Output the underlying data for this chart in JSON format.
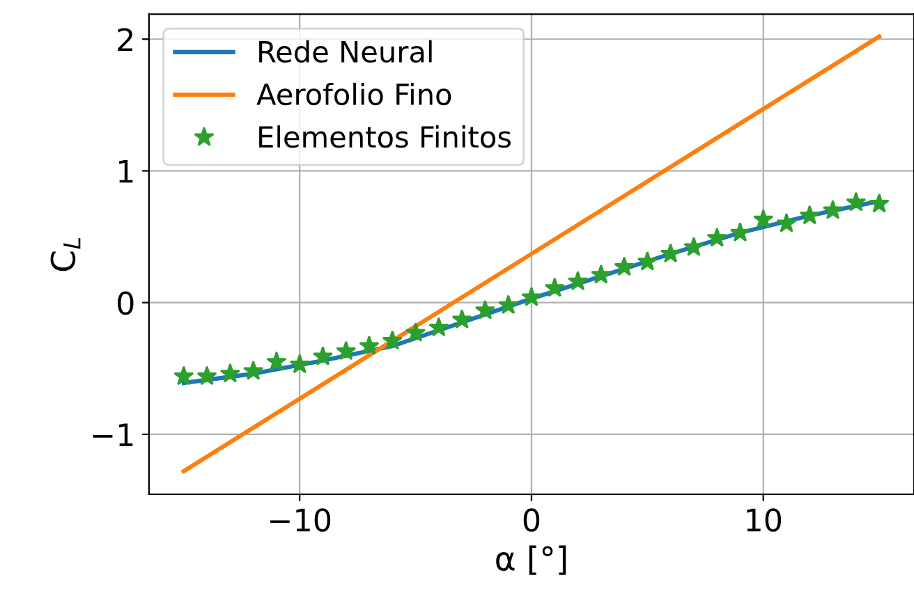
{
  "chart_data": {
    "type": "line",
    "xlabel": "α [°]",
    "ylabel": "C$_{L}$",
    "xlim": [
      -16.5,
      16.5
    ],
    "ylim": [
      -1.455,
      2.19
    ],
    "xticks": [
      {
        "value": -10,
        "label": "−10"
      },
      0,
      10
    ],
    "yticks": [
      {
        "value": -1,
        "label": "−1"
      },
      0,
      1,
      2
    ],
    "grid": true,
    "legend": "top left",
    "series": [
      {
        "name": "Rede Neural",
        "color": "#1f77b4",
        "x": [
          -15,
          -12,
          -9,
          -6,
          -3,
          0,
          3,
          6,
          9,
          12,
          15
        ],
        "values": [
          -0.61,
          -0.54,
          -0.44,
          -0.33,
          -0.15,
          0.03,
          0.2,
          0.37,
          0.53,
          0.66,
          0.77
        ]
      },
      {
        "name": "Aerofolio Fino",
        "color": "#ff7f0e",
        "x": [
          -15,
          15
        ],
        "values": [
          -1.28,
          2.02
        ]
      },
      {
        "name": "Elementos Finitos",
        "color": "#2ca02c",
        "type": "scatter",
        "marker": "star",
        "x": [
          -15,
          -14,
          -13,
          -12,
          -11,
          -10,
          -9,
          -8,
          -7,
          -6,
          -5,
          -4,
          -3,
          -2,
          -1,
          0,
          1,
          2,
          3,
          4,
          5,
          6,
          7,
          8,
          9,
          10,
          11,
          12,
          13,
          14,
          15
        ],
        "values": [
          -0.56,
          -0.56,
          -0.54,
          -0.52,
          -0.45,
          -0.47,
          -0.41,
          -0.37,
          -0.33,
          -0.29,
          -0.23,
          -0.19,
          -0.13,
          -0.06,
          -0.02,
          0.04,
          0.11,
          0.16,
          0.21,
          0.27,
          0.31,
          0.37,
          0.42,
          0.49,
          0.53,
          0.63,
          0.6,
          0.66,
          0.7,
          0.76,
          0.75
        ]
      }
    ]
  }
}
